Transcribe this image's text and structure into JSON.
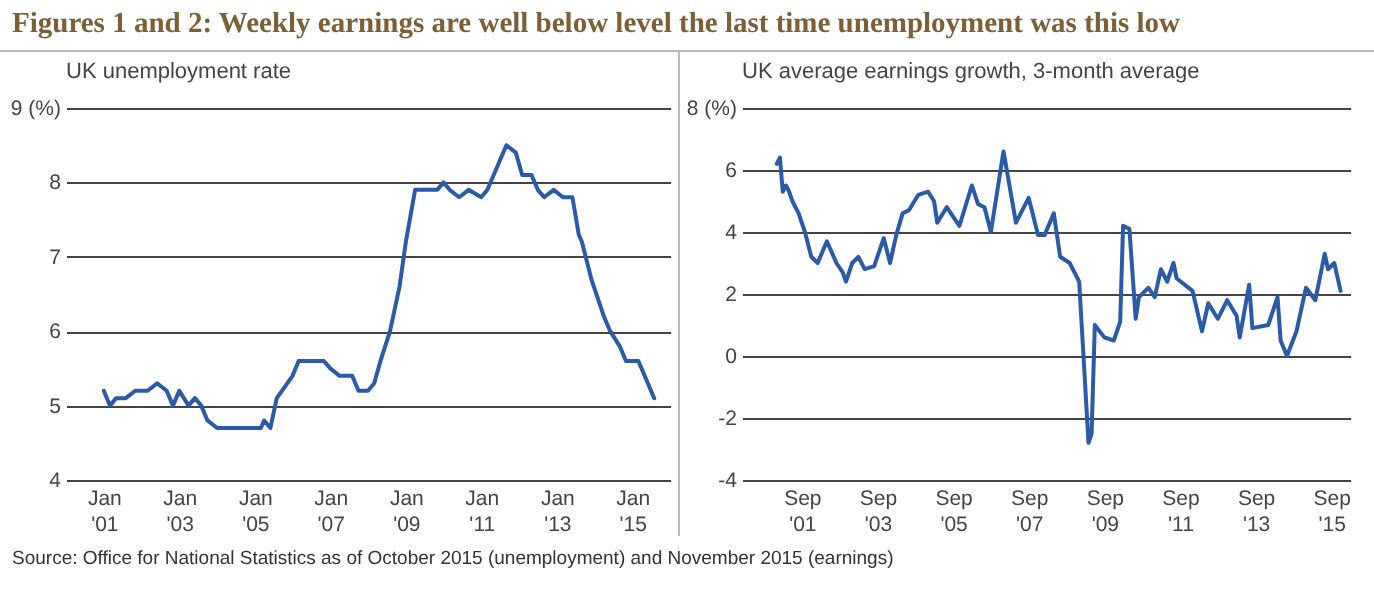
{
  "chart_data": [
    {
      "type": "line",
      "title": "Figures 1 and 2: Weekly earnings are well below level the last time unemployment was this low",
      "subtitle": "UK unemployment rate",
      "annotations": [
        "Source: Office for National Statistics as of October 2015 (unemployment) and November 2015 (earnings)"
      ],
      "x": [
        "2001-01",
        "2001-03",
        "2001-05",
        "2001-08",
        "2001-11",
        "2002-03",
        "2002-06",
        "2002-09",
        "2002-11",
        "2003-01",
        "2003-04",
        "2003-06",
        "2003-08",
        "2003-10",
        "2004-01",
        "2004-05",
        "2004-09",
        "2005-01",
        "2005-03",
        "2005-04",
        "2005-06",
        "2005-08",
        "2006-01",
        "2006-03",
        "2006-08",
        "2006-11",
        "2007-01",
        "2007-04",
        "2007-08",
        "2007-10",
        "2008-01",
        "2008-03",
        "2008-05",
        "2008-08",
        "2008-11",
        "2009-01",
        "2009-04",
        "2009-07",
        "2009-11",
        "2010-01",
        "2010-03",
        "2010-06",
        "2010-09",
        "2011-01",
        "2011-03",
        "2011-06",
        "2011-09",
        "2011-12",
        "2012-02",
        "2012-05",
        "2012-07",
        "2012-09",
        "2012-12",
        "2013-03",
        "2013-06",
        "2013-08",
        "2013-09",
        "2013-12",
        "2014-04",
        "2014-06",
        "2014-09",
        "2014-11",
        "2015-03",
        "2015-05",
        "2015-08"
      ],
      "series": [
        {
          "color": "#2a5ba8",
          "values": [
            5.2,
            5.0,
            5.1,
            5.1,
            5.2,
            5.2,
            5.3,
            5.2,
            5.0,
            5.2,
            5.0,
            5.1,
            5.0,
            4.8,
            4.7,
            4.7,
            4.7,
            4.7,
            4.7,
            4.8,
            4.7,
            5.1,
            5.4,
            5.6,
            5.6,
            5.6,
            5.5,
            5.4,
            5.4,
            5.2,
            5.2,
            5.3,
            5.6,
            6.0,
            6.6,
            7.2,
            7.9,
            7.9,
            7.9,
            8.0,
            7.9,
            7.8,
            7.9,
            7.8,
            7.9,
            8.2,
            8.5,
            8.4,
            8.1,
            8.1,
            7.9,
            7.8,
            7.9,
            7.8,
            7.8,
            7.3,
            7.2,
            6.7,
            6.2,
            6.0,
            5.8,
            5.6,
            5.6,
            5.4,
            5.1
          ]
        }
      ],
      "xlim": [
        "2000-01",
        "2016-01"
      ],
      "xticks": [
        {
          "value": "2001-01",
          "label": "Jan '01"
        },
        {
          "value": "2003-01",
          "label": "Jan '03"
        },
        {
          "value": "2005-01",
          "label": "Jan '05"
        },
        {
          "value": "2007-01",
          "label": "Jan '07"
        },
        {
          "value": "2009-01",
          "label": "Jan '09"
        },
        {
          "value": "2011-01",
          "label": "Jan '11"
        },
        {
          "value": "2013-01",
          "label": "Jan '13"
        },
        {
          "value": "2015-01",
          "label": "Jan '15"
        }
      ],
      "ylim": [
        4,
        9
      ],
      "yticks": [
        {
          "value": 9,
          "label": "9 (%)"
        },
        8,
        7,
        6,
        5,
        4
      ],
      "grid": "y"
    },
    {
      "type": "line",
      "title": "UK average earnings growth, 3-month average",
      "x": [
        "2001-01",
        "2001-02",
        "2001-03",
        "2001-04",
        "2001-05",
        "2001-06",
        "2001-08",
        "2001-10",
        "2001-12",
        "2002-02",
        "2002-05",
        "2002-08",
        "2002-10",
        "2002-11",
        "2003-01",
        "2003-03",
        "2003-05",
        "2003-08",
        "2003-11",
        "2004-01",
        "2004-03",
        "2004-05",
        "2004-07",
        "2004-10",
        "2005-01",
        "2005-03",
        "2005-04",
        "2005-07",
        "2005-11",
        "2006-03",
        "2006-05",
        "2006-07",
        "2006-09",
        "2007-01",
        "2007-05",
        "2007-09",
        "2007-12",
        "2008-02",
        "2008-05",
        "2008-07",
        "2008-10",
        "2009-01",
        "2009-04",
        "2009-05",
        "2009-06",
        "2009-09",
        "2009-12",
        "2010-02",
        "2010-03",
        "2010-05",
        "2010-07",
        "2010-08",
        "2010-11",
        "2011-01",
        "2011-03",
        "2011-05",
        "2011-07",
        "2011-08",
        "2012-01",
        "2012-04",
        "2012-06",
        "2012-09",
        "2012-12",
        "2013-03",
        "2013-04",
        "2013-07",
        "2013-08",
        "2014-01",
        "2014-04",
        "2014-05",
        "2014-07",
        "2014-10",
        "2015-01",
        "2015-04",
        "2015-07",
        "2015-08",
        "2015-10",
        "2015-12"
      ],
      "series": [
        {
          "color": "#2a5ba8",
          "values": [
            6.2,
            6.4,
            5.3,
            5.5,
            5.3,
            5.0,
            4.6,
            4.0,
            3.2,
            3.0,
            3.7,
            3.0,
            2.7,
            2.4,
            3.0,
            3.2,
            2.8,
            2.9,
            3.8,
            3.0,
            3.9,
            4.6,
            4.7,
            5.2,
            5.3,
            5.0,
            4.3,
            4.8,
            4.2,
            5.5,
            4.9,
            4.8,
            4.0,
            6.6,
            4.3,
            5.1,
            3.9,
            3.9,
            4.6,
            3.2,
            3.0,
            2.4,
            -2.8,
            -2.5,
            1.0,
            0.6,
            0.5,
            1.1,
            4.2,
            4.1,
            1.2,
            1.9,
            2.2,
            1.9,
            2.8,
            2.4,
            3.0,
            2.5,
            2.1,
            0.8,
            1.7,
            1.2,
            1.8,
            1.3,
            0.6,
            2.3,
            0.9,
            1.0,
            1.9,
            0.5,
            0.0,
            0.8,
            2.2,
            1.8,
            3.3,
            2.8,
            3.0,
            2.1
          ]
        }
      ],
      "xlim": [
        "2000-02",
        "2016-03"
      ],
      "xticks": [
        {
          "value": "2001-09",
          "label": "Sep '01"
        },
        {
          "value": "2003-09",
          "label": "Sep '03"
        },
        {
          "value": "2005-09",
          "label": "Sep '05"
        },
        {
          "value": "2007-09",
          "label": "Sep '07"
        },
        {
          "value": "2009-09",
          "label": "Sep '09"
        },
        {
          "value": "2011-09",
          "label": "Sep '11"
        },
        {
          "value": "2013-09",
          "label": "Sep '13"
        },
        {
          "value": "2015-09",
          "label": "Sep '15"
        }
      ],
      "ylim": [
        -4,
        8
      ],
      "yticks": [
        {
          "value": 8,
          "label": "8 (%)"
        },
        6,
        4,
        2,
        0,
        -2,
        -4
      ],
      "grid": "y"
    }
  ]
}
